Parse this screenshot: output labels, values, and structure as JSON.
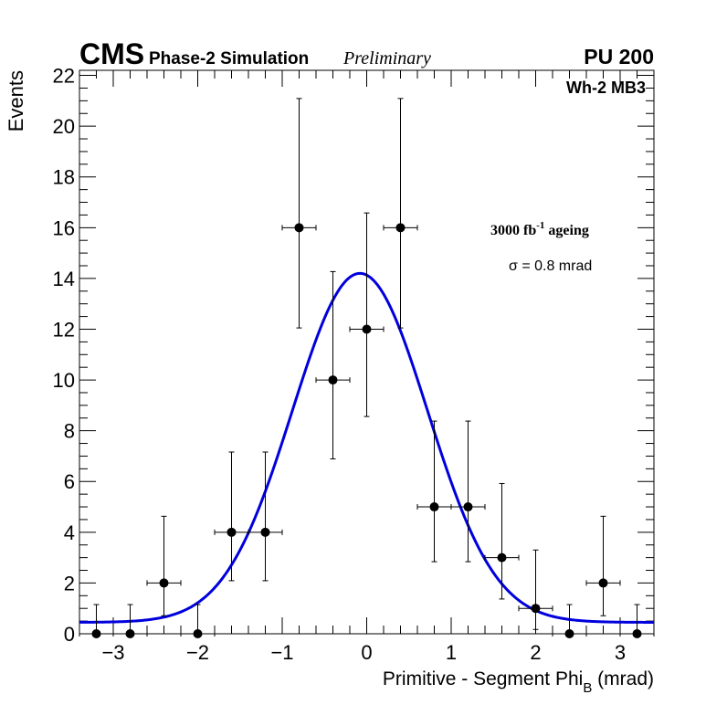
{
  "chart_data": {
    "type": "scatter",
    "title": "",
    "header": {
      "experiment": "CMS",
      "phase": "Phase-2 Simulation",
      "status": "Preliminary",
      "pileup": "PU 200"
    },
    "channel_label": "Wh-2 MB3",
    "ageing_label": "3000 fb",
    "ageing_sup": "-1",
    "ageing_suffix": " ageing",
    "sigma_label": "σ = 0.8 mrad",
    "xlabel": "Primitive - Segment Phi",
    "xlabel_sub": "B",
    "xlabel_unit": " (mrad)",
    "ylabel": "Events",
    "xlim": [
      -3.4,
      3.4
    ],
    "ylim": [
      0,
      22.2
    ],
    "x_ticks": [
      -3,
      -2,
      -1,
      0,
      1,
      2,
      3
    ],
    "x_tick_labels": [
      "−3",
      "−2",
      "−1",
      "0",
      "1",
      "2",
      "3"
    ],
    "y_ticks": [
      0,
      2,
      4,
      6,
      8,
      10,
      12,
      14,
      16,
      18,
      20,
      22
    ],
    "y_tick_labels": [
      "0",
      "2",
      "4",
      "6",
      "8",
      "10",
      "12",
      "14",
      "16",
      "18",
      "20",
      "22"
    ],
    "bin_half_width": 0.2,
    "series": [
      {
        "name": "Events",
        "x": [
          -3.2,
          -2.8,
          -2.4,
          -2.0,
          -1.6,
          -1.2,
          -0.8,
          -0.4,
          0.0,
          0.4,
          0.8,
          1.2,
          1.6,
          2.0,
          2.4,
          2.8,
          3.2
        ],
        "y": [
          0,
          0,
          2,
          0,
          4,
          4,
          16,
          10,
          12,
          16,
          5,
          5,
          3,
          1,
          0,
          2,
          0
        ],
        "err_low": [
          0,
          0,
          1.29,
          0,
          1.91,
          1.91,
          3.95,
          3.11,
          3.44,
          3.95,
          2.16,
          2.16,
          1.63,
          0.83,
          0,
          1.29,
          0
        ],
        "err_high": [
          1.15,
          1.15,
          2.63,
          1.15,
          3.16,
          3.16,
          5.09,
          4.27,
          4.58,
          5.09,
          3.38,
          3.38,
          2.92,
          2.3,
          1.15,
          2.63,
          1.15
        ]
      }
    ],
    "fit": {
      "name": "Gaussian fit",
      "function": "gaussian",
      "constant": 0.45,
      "amplitude": 13.75,
      "mean": -0.08,
      "sigma": 0.8,
      "color": "#0000dd"
    }
  }
}
